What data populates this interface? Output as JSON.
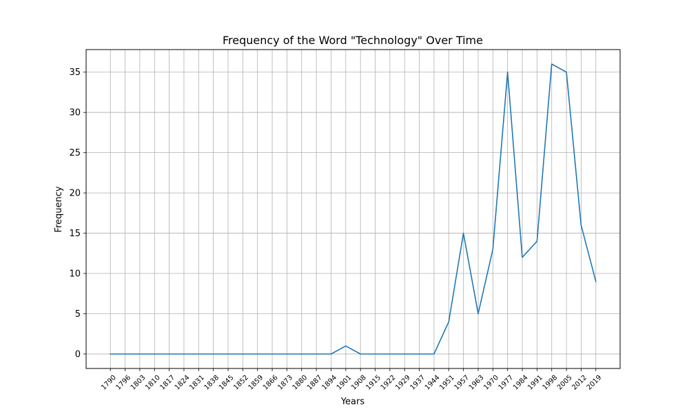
{
  "chart_data": {
    "type": "line",
    "title": "Frequency of the Word \"Technology\" Over Time",
    "xlabel": "Years",
    "ylabel": "Frequency",
    "x": [
      "1790",
      "1796",
      "1803",
      "1810",
      "1817",
      "1824",
      "1831",
      "1838",
      "1845",
      "1852",
      "1859",
      "1866",
      "1873",
      "1880",
      "1887",
      "1894",
      "1901",
      "1908",
      "1915",
      "1922",
      "1929",
      "1937",
      "1944",
      "1951",
      "1957",
      "1963",
      "1970",
      "1977",
      "1984",
      "1991",
      "1998",
      "2005",
      "2012",
      "2019"
    ],
    "series": [
      {
        "name": "",
        "color": "#1f77b4",
        "values": [
          0,
          0,
          0,
          0,
          0,
          0,
          0,
          0,
          0,
          0,
          0,
          0,
          0,
          0,
          0,
          0,
          1,
          0,
          0,
          0,
          0,
          0,
          0,
          4,
          15,
          5,
          13,
          35,
          12,
          14,
          36,
          35,
          16,
          9
        ]
      }
    ],
    "yticks": [
      0,
      5,
      10,
      15,
      20,
      25,
      30,
      35
    ],
    "ylim": [
      -1.8,
      37.8
    ],
    "grid": true
  }
}
